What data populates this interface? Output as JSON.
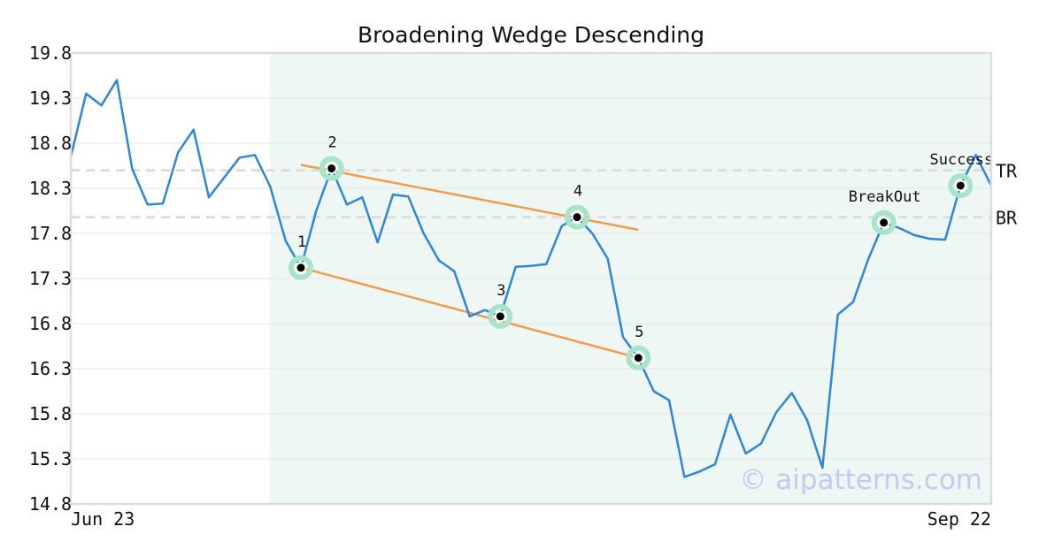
{
  "chart_data": {
    "type": "line",
    "title": "Broadening Wedge Descending",
    "ylim": [
      14.8,
      19.8
    ],
    "yticks": [
      "19.8",
      "19.3",
      "18.8",
      "18.3",
      "17.8",
      "17.3",
      "16.8",
      "16.3",
      "15.8",
      "15.3",
      "14.8"
    ],
    "xtick_labels": [
      "Jun 23",
      "Sep 22"
    ],
    "grid": true,
    "colors": {
      "line": "#2e86de",
      "trend": "#f39c4a",
      "highlight": "#eef7f3",
      "point_halo": "#a8e4c8",
      "reference": "#dddddd",
      "grid": "#e6e6e6",
      "frame": "#dddddd"
    },
    "x_count": 61,
    "series": [
      {
        "values": [
          18.65,
          19.35,
          19.22,
          19.5,
          18.52,
          18.12,
          18.13,
          18.7,
          18.95,
          18.2,
          18.42,
          18.64,
          18.67,
          18.32,
          17.72,
          17.42,
          18.05,
          18.52,
          18.12,
          18.2,
          17.7,
          18.23,
          18.21,
          17.8,
          17.5,
          17.38,
          16.88,
          16.95,
          16.88,
          17.43,
          17.44,
          17.46,
          17.88,
          17.98,
          17.8,
          17.52,
          16.65,
          16.42,
          16.05,
          15.95,
          15.1,
          15.16,
          15.24,
          15.79,
          15.36,
          15.47,
          15.82,
          16.03,
          15.73,
          15.2,
          16.9,
          17.04,
          17.52,
          17.92,
          17.86,
          17.78,
          17.74,
          17.73,
          18.33,
          18.67,
          18.33
        ]
      }
    ],
    "highlight_range": [
      13,
      60
    ],
    "trendlines": [
      {
        "from": [
          15,
          18.56
        ],
        "to": [
          37,
          17.84
        ]
      },
      {
        "from": [
          15,
          17.42
        ],
        "to": [
          37,
          16.42
        ]
      }
    ],
    "points": [
      {
        "label": "1",
        "x": 15,
        "y": 17.42
      },
      {
        "label": "2",
        "x": 17,
        "y": 18.52
      },
      {
        "label": "3",
        "x": 28,
        "y": 16.88
      },
      {
        "label": "4",
        "x": 33,
        "y": 17.98
      },
      {
        "label": "5",
        "x": 37,
        "y": 16.42
      },
      {
        "label": "BreakOut",
        "x": 53,
        "y": 17.92
      },
      {
        "label": "Success",
        "x": 58,
        "y": 18.33
      }
    ],
    "reference_lines": [
      {
        "label": "TR",
        "y": 18.5
      },
      {
        "label": "BR",
        "y": 17.98
      }
    ],
    "watermark": "© aipatterns.com"
  }
}
